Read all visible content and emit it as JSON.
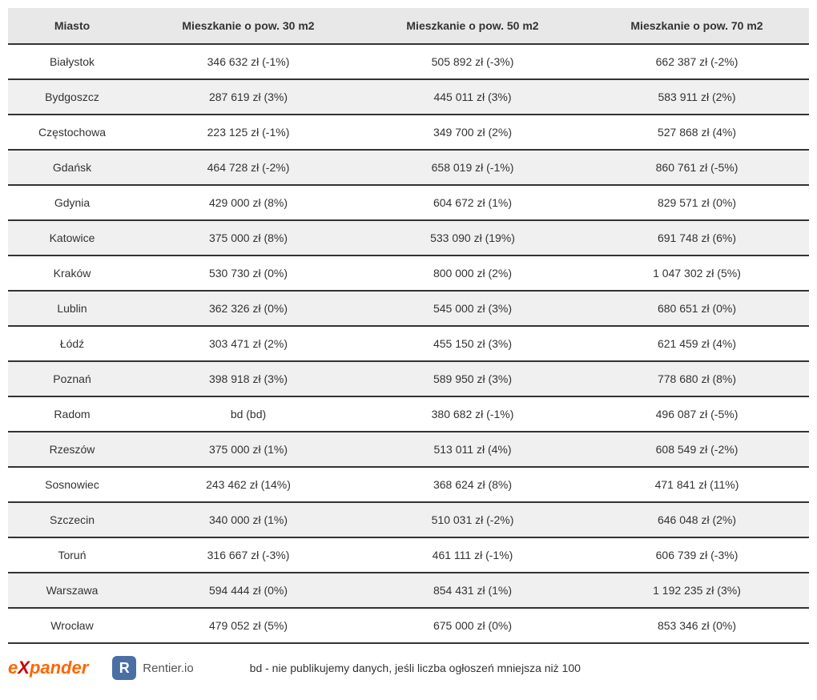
{
  "table": {
    "columns": [
      "Miasto",
      "Mieszkanie o pow. 30 m2",
      "Mieszkanie o pow. 50 m2",
      "Mieszkanie o pow. 70 m2"
    ],
    "rows": [
      [
        "Białystok",
        "346 632 zł (-1%)",
        "505 892 zł (-3%)",
        "662 387 zł (-2%)"
      ],
      [
        "Bydgoszcz",
        "287 619 zł (3%)",
        "445 011 zł (3%)",
        "583 911 zł (2%)"
      ],
      [
        "Częstochowa",
        "223 125 zł (-1%)",
        "349 700 zł (2%)",
        "527 868 zł (4%)"
      ],
      [
        "Gdańsk",
        "464 728 zł (-2%)",
        "658 019 zł (-1%)",
        "860 761 zł (-5%)"
      ],
      [
        "Gdynia",
        "429 000 zł (8%)",
        "604 672 zł (1%)",
        "829 571 zł (0%)"
      ],
      [
        "Katowice",
        "375 000 zł (8%)",
        "533 090 zł (19%)",
        "691 748 zł (6%)"
      ],
      [
        "Kraków",
        "530 730 zł (0%)",
        "800 000 zł (2%)",
        "1 047 302 zł (5%)"
      ],
      [
        "Lublin",
        "362 326 zł (0%)",
        "545 000 zł (3%)",
        "680 651 zł (0%)"
      ],
      [
        "Łódź",
        "303 471 zł (2%)",
        "455 150 zł (3%)",
        "621 459 zł (4%)"
      ],
      [
        "Poznań",
        "398 918 zł (3%)",
        "589 950 zł (3%)",
        "778 680 zł (8%)"
      ],
      [
        "Radom",
        "bd (bd)",
        "380 682 zł (-1%)",
        "496 087 zł (-5%)"
      ],
      [
        "Rzeszów",
        "375 000 zł (1%)",
        "513 011 zł (4%)",
        "608 549 zł (-2%)"
      ],
      [
        "Sosnowiec",
        "243 462 zł (14%)",
        "368 624 zł (8%)",
        "471 841 zł (11%)"
      ],
      [
        "Szczecin",
        "340 000 zł (1%)",
        "510 031 zł (-2%)",
        "646 048 zł (2%)"
      ],
      [
        "Toruń",
        "316 667 zł (-3%)",
        "461 111 zł (-1%)",
        "606 739 zł (-3%)"
      ],
      [
        "Warszawa",
        "594 444 zł (0%)",
        "854 431 zł (1%)",
        "1 192 235 zł (3%)"
      ],
      [
        "Wrocław",
        "479 052 zł (5%)",
        "675 000 zł (0%)",
        "853 346 zł (0%)"
      ]
    ]
  },
  "footer": {
    "expander_logo": "expander",
    "rentier_icon": "R",
    "rentier_text": "Rentier.io",
    "note": "bd - nie publikujemy danych, jeśli liczba ogłoszeń mniejsza niż 100"
  },
  "styling": {
    "header_bg": "#e8e8e8",
    "row_even_bg": "#f0f0f0",
    "row_odd_bg": "#ffffff",
    "border_color": "#333333",
    "text_color": "#333333",
    "font_size_header": 14,
    "font_size_cell": 14,
    "expander_color_primary": "#ff6600",
    "expander_color_x": "#cc0000",
    "rentier_icon_bg": "#4a6fa5"
  }
}
